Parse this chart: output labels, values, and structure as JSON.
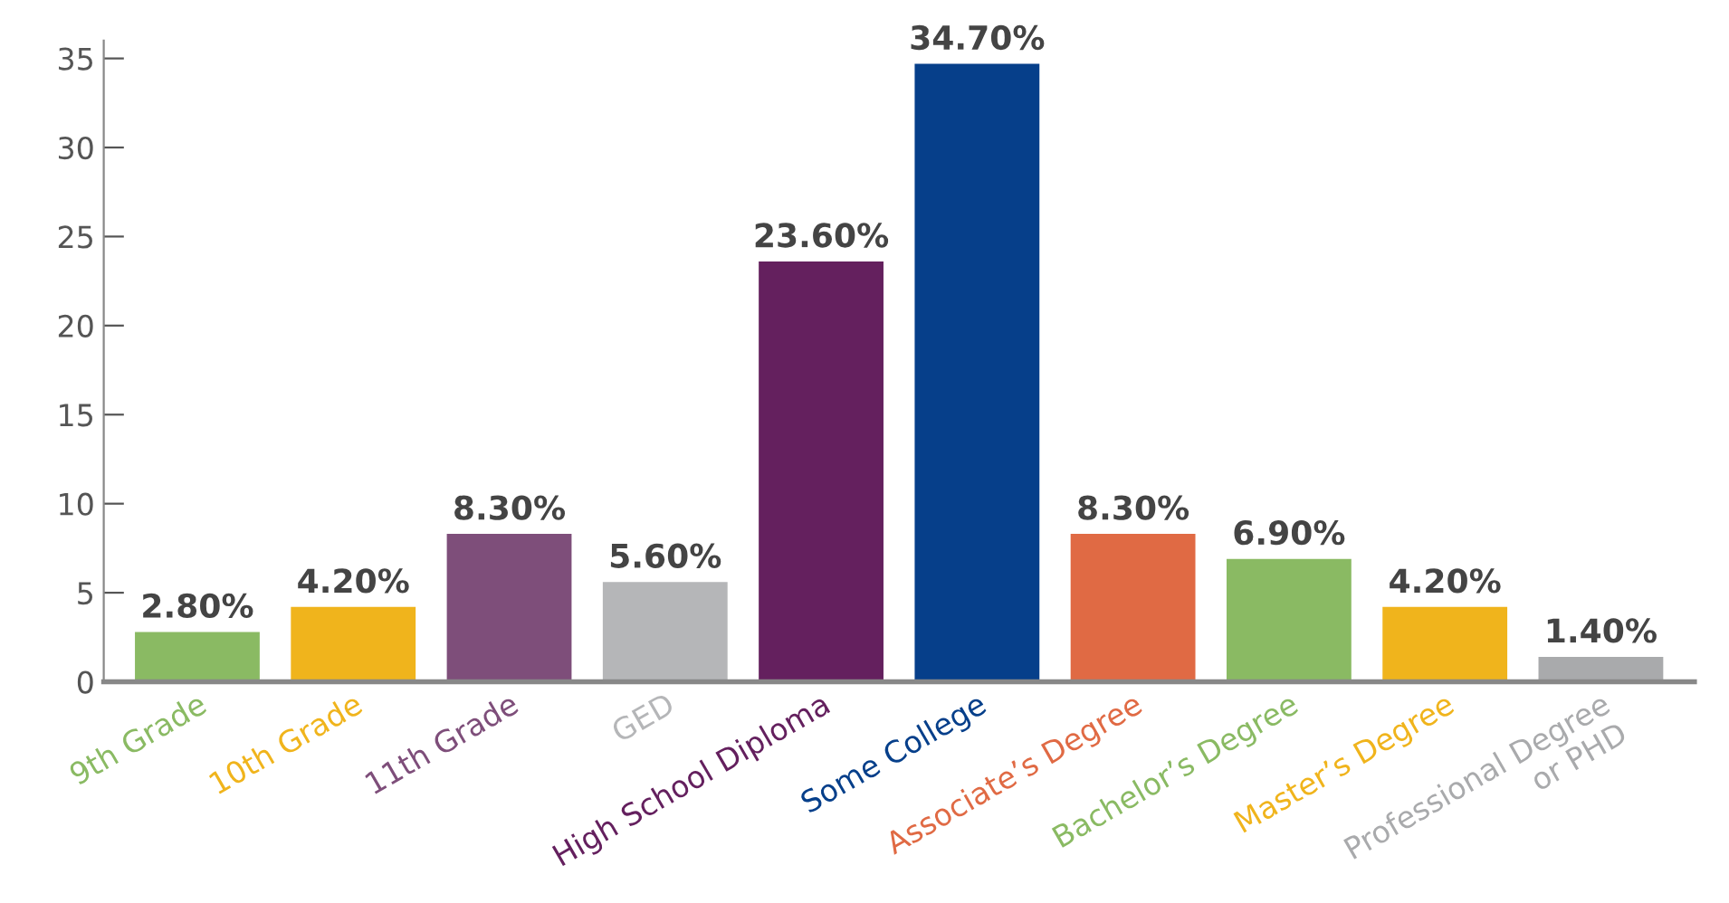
{
  "chart_data": {
    "type": "bar",
    "categories": [
      "9th Grade",
      "10th Grade",
      "11th Grade",
      "GED",
      "High School Diploma",
      "Some College",
      "Associate’s Degree",
      "Bachelor’s Degree",
      "Master’s Degree",
      "Professional Degree\nor PHD"
    ],
    "values": [
      2.8,
      4.2,
      8.3,
      5.6,
      23.6,
      34.7,
      8.3,
      6.9,
      4.2,
      1.4
    ],
    "value_labels": [
      "2.80%",
      "4.20%",
      "8.30%",
      "5.60%",
      "23.60%",
      "34.70%",
      "8.30%",
      "6.90%",
      "4.20%",
      "1.40%"
    ],
    "colors": [
      "#8aba63",
      "#f0b41c",
      "#7e4e7a",
      "#b5b6b8",
      "#64205e",
      "#063f8a",
      "#e06a44",
      "#8aba63",
      "#f0b41c",
      "#a9aaac"
    ],
    "ylim": [
      0,
      36
    ],
    "yticks": [
      0,
      5,
      10,
      15,
      20,
      25,
      30,
      35
    ],
    "grid": false,
    "legend": false
  }
}
